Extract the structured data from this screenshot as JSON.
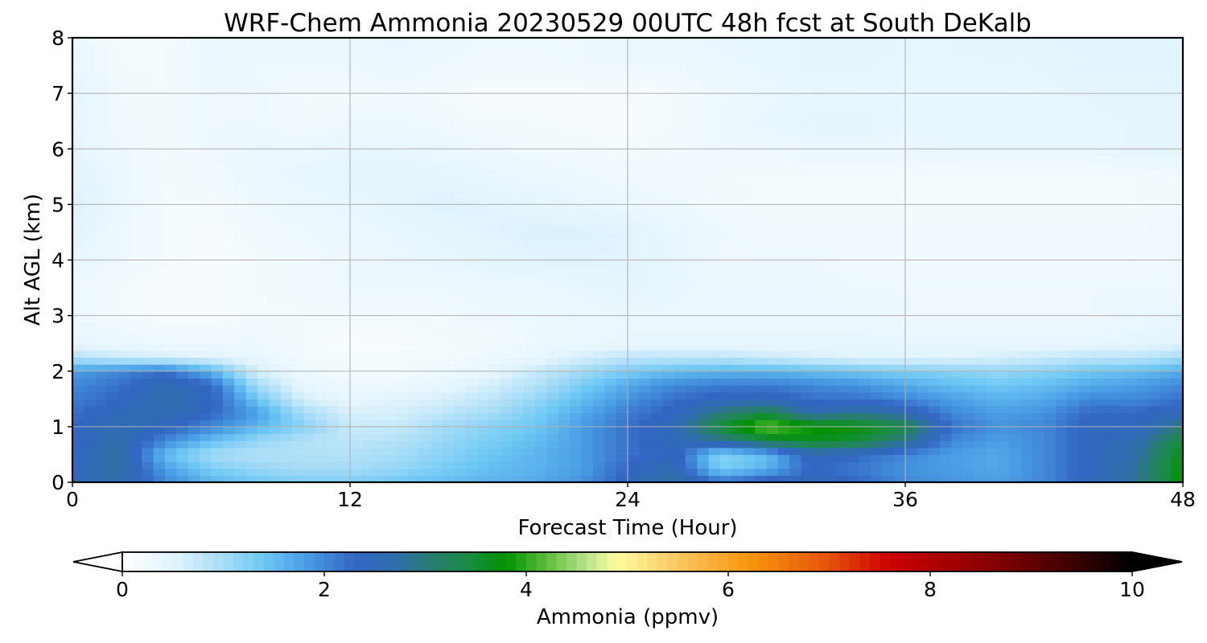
{
  "chart_data": {
    "type": "heatmap",
    "title": "WRF-Chem Ammonia  20230529 00UTC 48h fcst at South DeKalb",
    "xlabel": "Forecast Time (Hour)",
    "ylabel": "Alt AGL (km)",
    "xlim": [
      0,
      48
    ],
    "ylim": [
      0,
      8
    ],
    "x_ticks": [
      0,
      12,
      24,
      36,
      48
    ],
    "y_ticks": [
      0,
      1,
      2,
      3,
      4,
      5,
      6,
      7,
      8
    ],
    "grid": true,
    "colorbar": {
      "label": "Ammonia  (ppmv)",
      "range": [
        0,
        10
      ],
      "ticks": [
        0,
        2,
        4,
        6,
        8,
        10
      ],
      "extend": "both",
      "orientation": "horizontal",
      "colors": [
        [
          0.0,
          "#ffffff"
        ],
        [
          0.5,
          "#e2f4fd"
        ],
        [
          1.0,
          "#a6dcf7"
        ],
        [
          1.4,
          "#6ec8f4"
        ],
        [
          1.8,
          "#4a9fe5"
        ],
        [
          2.3,
          "#3366c4"
        ],
        [
          2.7,
          "#2f6eab"
        ],
        [
          3.0,
          "#2a7a78"
        ],
        [
          3.4,
          "#1a8c46"
        ],
        [
          3.8,
          "#009200"
        ],
        [
          4.2,
          "#5cbd3c"
        ],
        [
          4.6,
          "#b9e48c"
        ],
        [
          4.9,
          "#fffca0"
        ],
        [
          5.5,
          "#f9c762"
        ],
        [
          6.2,
          "#f8960e"
        ],
        [
          7.0,
          "#e5520b"
        ],
        [
          7.6,
          "#cc0000"
        ],
        [
          8.6,
          "#880000"
        ],
        [
          9.4,
          "#3e0000"
        ],
        [
          10.0,
          "#000000"
        ]
      ]
    },
    "field": {
      "x": [
        0,
        2,
        4,
        6,
        8,
        10,
        12,
        14,
        16,
        18,
        20,
        22,
        24,
        26,
        28,
        30,
        32,
        34,
        36,
        38,
        40,
        42,
        44,
        46,
        48
      ],
      "y": [
        0,
        0.25,
        0.5,
        0.75,
        1.0,
        1.25,
        1.5,
        1.75,
        2.0,
        2.25,
        2.5,
        3,
        3.5,
        4,
        4.5,
        5,
        5.5,
        6,
        6.5,
        7,
        7.5,
        8
      ],
      "values": [
        [
          2.4,
          2.7,
          2.0,
          1.6,
          1.4,
          1.3,
          1.3,
          1.4,
          1.5,
          1.6,
          1.7,
          1.9,
          2.4,
          2.8,
          2.2,
          2.5,
          2.5,
          2.3,
          2.0,
          1.9,
          1.8,
          2.0,
          2.4,
          2.8,
          3.8
        ],
        [
          2.4,
          2.8,
          1.8,
          1.3,
          1.1,
          1.0,
          1.0,
          1.1,
          1.3,
          1.5,
          1.6,
          1.8,
          2.3,
          2.6,
          1.3,
          1.6,
          2.3,
          2.1,
          1.9,
          1.8,
          1.7,
          2.0,
          2.4,
          2.8,
          3.8
        ],
        [
          2.3,
          2.8,
          1.5,
          1.0,
          0.9,
          0.9,
          0.9,
          1.0,
          1.2,
          1.4,
          1.6,
          1.8,
          2.2,
          2.4,
          1.2,
          1.5,
          2.5,
          2.3,
          2.0,
          1.8,
          1.7,
          2.0,
          2.4,
          2.7,
          3.7
        ],
        [
          2.3,
          2.7,
          2.0,
          1.5,
          1.1,
          0.9,
          0.8,
          0.9,
          1.1,
          1.3,
          1.5,
          1.8,
          2.2,
          2.5,
          2.8,
          3.4,
          3.6,
          3.5,
          2.9,
          2.0,
          1.8,
          2.0,
          2.4,
          2.6,
          3.5
        ],
        [
          2.3,
          2.6,
          2.4,
          2.0,
          1.6,
          1.2,
          0.7,
          0.7,
          1.0,
          1.2,
          1.4,
          1.8,
          2.2,
          2.5,
          3.5,
          4.3,
          3.9,
          3.7,
          3.4,
          2.2,
          1.9,
          2.0,
          2.4,
          2.4,
          3.0
        ],
        [
          2.2,
          2.5,
          2.6,
          2.3,
          1.8,
          1.0,
          0.6,
          0.6,
          0.8,
          1.0,
          1.3,
          1.7,
          2.1,
          2.4,
          3.0,
          3.4,
          2.6,
          2.9,
          2.6,
          2.0,
          1.8,
          1.9,
          2.3,
          2.3,
          2.5
        ],
        [
          2.1,
          2.3,
          2.7,
          2.4,
          1.4,
          0.6,
          0.4,
          0.5,
          0.6,
          0.8,
          1.1,
          1.5,
          1.9,
          2.2,
          2.4,
          2.5,
          2.2,
          2.2,
          2.0,
          1.8,
          1.6,
          1.7,
          2.0,
          2.0,
          2.2
        ],
        [
          2.0,
          2.2,
          2.6,
          2.3,
          1.0,
          0.4,
          0.3,
          0.3,
          0.4,
          0.6,
          0.9,
          1.3,
          1.7,
          2.0,
          2.1,
          2.1,
          2.0,
          1.9,
          1.7,
          1.5,
          1.4,
          1.5,
          1.7,
          1.8,
          2.0
        ],
        [
          1.8,
          2.0,
          2.2,
          1.6,
          0.6,
          0.3,
          0.2,
          0.2,
          0.3,
          0.4,
          0.7,
          1.0,
          1.3,
          1.5,
          1.6,
          1.6,
          1.5,
          1.4,
          1.3,
          1.2,
          1.1,
          1.2,
          1.4,
          1.5,
          1.7
        ],
        [
          0.9,
          0.7,
          0.6,
          0.5,
          0.4,
          0.2,
          0.2,
          0.2,
          0.2,
          0.3,
          0.4,
          0.6,
          0.8,
          0.8,
          0.8,
          0.7,
          0.6,
          0.5,
          0.5,
          0.5,
          0.6,
          0.7,
          0.8,
          0.8,
          1.0
        ],
        [
          0.4,
          0.35,
          0.3,
          0.3,
          0.3,
          0.2,
          0.15,
          0.15,
          0.2,
          0.2,
          0.3,
          0.35,
          0.4,
          0.4,
          0.4,
          0.4,
          0.4,
          0.4,
          0.4,
          0.4,
          0.4,
          0.4,
          0.4,
          0.45,
          0.5
        ],
        [
          0.3,
          0.2,
          0.15,
          0.15,
          0.2,
          0.2,
          0.2,
          0.2,
          0.25,
          0.3,
          0.3,
          0.35,
          0.35,
          0.35,
          0.35,
          0.35,
          0.35,
          0.35,
          0.3,
          0.3,
          0.3,
          0.3,
          0.3,
          0.35,
          0.4
        ],
        [
          0.3,
          0.2,
          0.15,
          0.15,
          0.2,
          0.25,
          0.3,
          0.3,
          0.3,
          0.35,
          0.35,
          0.4,
          0.45,
          0.4,
          0.35,
          0.35,
          0.35,
          0.3,
          0.3,
          0.3,
          0.3,
          0.3,
          0.3,
          0.3,
          0.3
        ],
        [
          0.4,
          0.3,
          0.2,
          0.15,
          0.2,
          0.25,
          0.3,
          0.35,
          0.4,
          0.45,
          0.5,
          0.5,
          0.5,
          0.4,
          0.3,
          0.3,
          0.3,
          0.25,
          0.25,
          0.25,
          0.25,
          0.25,
          0.25,
          0.25,
          0.3
        ],
        [
          0.5,
          0.3,
          0.2,
          0.15,
          0.25,
          0.3,
          0.35,
          0.4,
          0.45,
          0.5,
          0.55,
          0.55,
          0.5,
          0.4,
          0.3,
          0.25,
          0.25,
          0.25,
          0.25,
          0.25,
          0.25,
          0.25,
          0.25,
          0.25,
          0.3
        ],
        [
          0.55,
          0.35,
          0.2,
          0.2,
          0.3,
          0.35,
          0.4,
          0.45,
          0.55,
          0.5,
          0.45,
          0.4,
          0.35,
          0.3,
          0.25,
          0.2,
          0.2,
          0.2,
          0.2,
          0.2,
          0.2,
          0.2,
          0.2,
          0.2,
          0.25
        ],
        [
          0.5,
          0.35,
          0.2,
          0.25,
          0.35,
          0.4,
          0.45,
          0.5,
          0.45,
          0.4,
          0.35,
          0.3,
          0.25,
          0.25,
          0.2,
          0.2,
          0.2,
          0.2,
          0.2,
          0.2,
          0.2,
          0.2,
          0.2,
          0.2,
          0.25
        ],
        [
          0.45,
          0.3,
          0.2,
          0.3,
          0.35,
          0.35,
          0.4,
          0.4,
          0.35,
          0.3,
          0.25,
          0.25,
          0.2,
          0.25,
          0.3,
          0.3,
          0.35,
          0.35,
          0.35,
          0.4,
          0.4,
          0.4,
          0.4,
          0.45,
          0.45
        ],
        [
          0.4,
          0.25,
          0.2,
          0.3,
          0.3,
          0.2,
          0.3,
          0.3,
          0.25,
          0.2,
          0.2,
          0.15,
          0.15,
          0.2,
          0.3,
          0.4,
          0.45,
          0.45,
          0.4,
          0.4,
          0.4,
          0.4,
          0.4,
          0.45,
          0.45
        ],
        [
          0.45,
          0.25,
          0.2,
          0.3,
          0.3,
          0.2,
          0.2,
          0.25,
          0.2,
          0.15,
          0.15,
          0.15,
          0.15,
          0.2,
          0.3,
          0.35,
          0.4,
          0.4,
          0.4,
          0.4,
          0.4,
          0.4,
          0.45,
          0.45,
          0.5
        ],
        [
          0.4,
          0.2,
          0.2,
          0.35,
          0.3,
          0.3,
          0.3,
          0.35,
          0.3,
          0.25,
          0.25,
          0.3,
          0.3,
          0.3,
          0.35,
          0.4,
          0.45,
          0.45,
          0.4,
          0.4,
          0.4,
          0.45,
          0.5,
          0.5,
          0.5
        ],
        [
          0.35,
          0.2,
          0.2,
          0.35,
          0.35,
          0.35,
          0.35,
          0.4,
          0.35,
          0.3,
          0.3,
          0.3,
          0.35,
          0.35,
          0.4,
          0.4,
          0.45,
          0.45,
          0.45,
          0.45,
          0.5,
          0.5,
          0.5,
          0.5,
          0.5
        ]
      ]
    }
  }
}
